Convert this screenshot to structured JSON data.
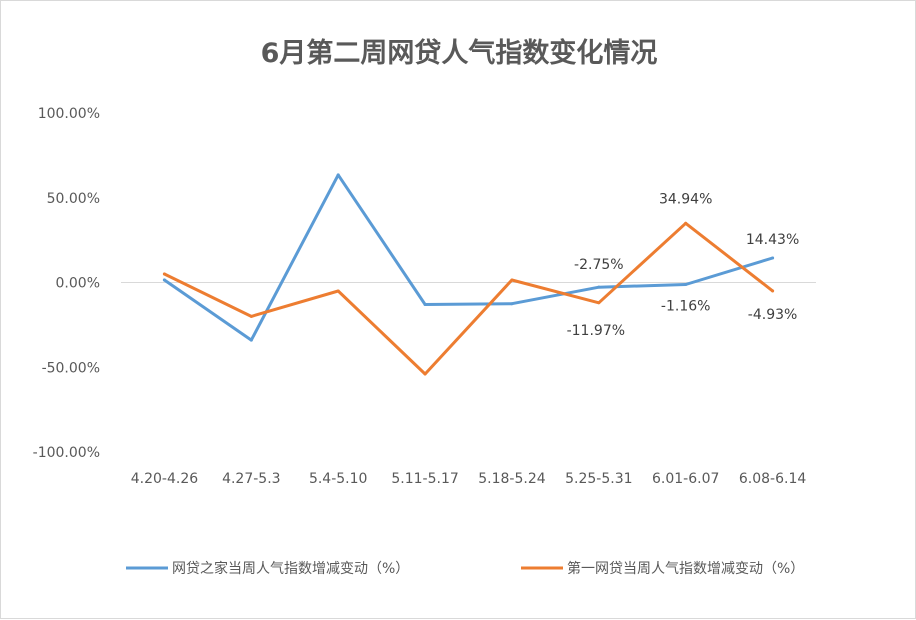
{
  "chart_data": {
    "type": "line",
    "title": "6月第二周网贷人气指数变化情况",
    "categories": [
      "4.20-4.26",
      "4.27-5.3",
      "5.4-5.10",
      "5.11-5.17",
      "5.18-5.24",
      "5.25-5.31",
      "6.01-6.07",
      "6.08-6.14"
    ],
    "y_ticks": [
      "100.00%",
      "50.00%",
      "0.00%",
      "-50.00%",
      "-100.00%"
    ],
    "ylim": [
      -100,
      100
    ],
    "grid": false,
    "legend_position": "bottom",
    "series": [
      {
        "name": "网贷之家当周人气指数增减变动（%）",
        "color": "#5b9bd5",
        "values": [
          1.5,
          -34,
          63.5,
          -13,
          -12.5,
          -2.75,
          -1.16,
          14.43
        ],
        "labels": [
          "",
          "",
          "",
          "",
          "",
          "-2.75%",
          "-1.16%",
          "14.43%"
        ]
      },
      {
        "name": "第一网贷当周人气指数增减变动（%）",
        "color": "#ed7d31",
        "values": [
          5,
          -20,
          -5,
          -54,
          1.5,
          -11.97,
          34.94,
          -4.93
        ],
        "labels": [
          "",
          "",
          "",
          "",
          "",
          "-11.97%",
          "34.94%",
          "-4.93%"
        ]
      }
    ]
  }
}
